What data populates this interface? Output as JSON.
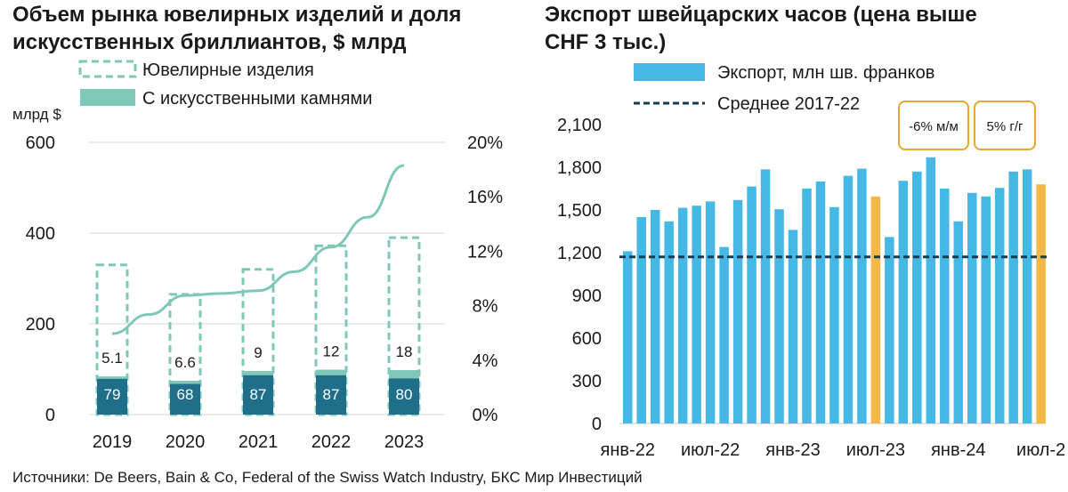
{
  "source": "Источники: De Beers, Bain & Co, Federal of the Swiss Watch Industry, БКС Мир Инвестиций",
  "colors": {
    "jewelry_outline": "#7fc8b8",
    "lab_fill": "#7fc8b8",
    "natural_bar": "#1f6f8b",
    "share_line": "#7fc8b8",
    "export_bar": "#46b8e6",
    "highlight_bar": "#f2b84b",
    "avg_line": "#163c52",
    "callout_border": "#e6a82e"
  },
  "chart_data": [
    {
      "type": "bar",
      "title_lines": [
        "Объем рынка ювелирных изделий и доля",
        "искусственных бриллиантов, $ млрд"
      ],
      "ylabel": "млрд $",
      "categories": [
        "2019",
        "2020",
        "2021",
        "2022",
        "2023"
      ],
      "ylim": [
        0,
        600
      ],
      "y_ticks": [
        "0",
        "200",
        "400",
        "600"
      ],
      "y2lim": [
        0,
        0.2
      ],
      "y2_ticks": [
        "0%",
        "4%",
        "8%",
        "12%",
        "16%",
        "20%"
      ],
      "legend": [
        {
          "key": "jewelry",
          "label": "Ювелирные изделия"
        },
        {
          "key": "lab",
          "label": "С искусственными камнями"
        }
      ],
      "series": [
        {
          "key": "jewelry",
          "name": "Ювелирные изделия",
          "values": [
            330,
            265,
            320,
            372,
            390
          ]
        },
        {
          "key": "natural",
          "values": [
            79,
            68,
            87,
            87,
            80
          ],
          "labels": [
            "79",
            "68",
            "87",
            "87",
            "80"
          ]
        },
        {
          "key": "lab",
          "name": "С искусственными камнями",
          "values": [
            5.1,
            6.6,
            9,
            12,
            18
          ],
          "labels": [
            "5.1",
            "6.6",
            "9",
            "12",
            "18"
          ]
        }
      ],
      "share_line": {
        "x": [
          2019,
          2019.5,
          2020,
          2020.5,
          2021,
          2021.5,
          2022,
          2022.5,
          2023
        ],
        "values": [
          0.0595,
          0.0735,
          0.0875,
          0.089,
          0.091,
          0.105,
          0.123,
          0.145,
          0.183
        ]
      }
    },
    {
      "type": "bar",
      "title_lines": [
        "Экспорт швейцарских часов (цена выше",
        "CHF 3 тыс.)"
      ],
      "ylim": [
        0,
        2100
      ],
      "y_ticks": [
        "0",
        "300",
        "600",
        "900",
        "1,200",
        "1,500",
        "1,800",
        "2,100"
      ],
      "x_tick_labels": [
        "янв-22",
        "июл-22",
        "янв-23",
        "июл-23",
        "янв-24",
        "июл-2"
      ],
      "legend": [
        {
          "key": "export",
          "label": "Экспорт, млн шв. франков"
        },
        {
          "key": "avg",
          "label": "Среднее 2017-22"
        }
      ],
      "series": [
        {
          "key": "export",
          "name": "Экспорт, млн шв. франков",
          "values": [
            1210,
            1450,
            1500,
            1420,
            1515,
            1530,
            1560,
            1240,
            1570,
            1665,
            1785,
            1505,
            1360,
            1650,
            1700,
            1520,
            1740,
            1790,
            1595,
            1310,
            1705,
            1770,
            1870,
            1650,
            1420,
            1620,
            1595,
            1655,
            1770,
            1785,
            1680
          ],
          "highlight_indices": [
            18,
            30
          ]
        }
      ],
      "average_2017_22": 1170,
      "callouts": [
        {
          "label": "-6% м/м"
        },
        {
          "label": "5% г/г"
        }
      ]
    }
  ]
}
